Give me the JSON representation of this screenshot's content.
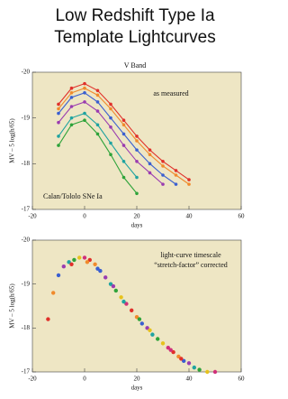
{
  "chart_data": [
    {
      "type": "line",
      "title": [
        "Low Redshift Type Ia",
        "Template Lightcurves"
      ],
      "subtitle": "V Band",
      "annotations": [
        "as measured",
        "Calan/Tololo SNe Ia"
      ],
      "x_label": "days",
      "y_label": "MV – 5 log(h/65)",
      "x": [
        -10,
        -5,
        0,
        5,
        10,
        15,
        20,
        25,
        30,
        35,
        40
      ],
      "series": [
        {
          "color": "#e0302a",
          "values": [
            -19.3,
            -19.65,
            -19.75,
            -19.6,
            -19.3,
            -18.95,
            -18.6,
            -18.3,
            -18.05,
            -17.85,
            -17.65
          ]
        },
        {
          "color": "#f08a2c",
          "values": [
            -19.2,
            -19.55,
            -19.65,
            -19.5,
            -19.2,
            -18.85,
            -18.5,
            -18.2,
            -17.95,
            -17.75,
            -17.55
          ]
        },
        {
          "color": "#3a5fd0",
          "values": [
            -19.1,
            -19.45,
            -19.55,
            -19.35,
            -19.0,
            -18.65,
            -18.3,
            -18.0,
            -17.75,
            -17.55,
            null
          ]
        },
        {
          "color": "#9a3cb0",
          "values": [
            -18.9,
            -19.25,
            -19.35,
            -19.15,
            -18.8,
            -18.4,
            -18.05,
            -17.8,
            -17.55,
            null,
            null
          ]
        },
        {
          "color": "#1fa3a0",
          "values": [
            -18.6,
            -19.0,
            -19.1,
            -18.85,
            -18.45,
            -18.05,
            -17.7,
            null,
            null,
            null,
            null
          ]
        },
        {
          "color": "#2ea33a",
          "values": [
            -18.4,
            -18.85,
            -18.95,
            -18.65,
            -18.2,
            -17.7,
            -17.35,
            null,
            null,
            null,
            null
          ]
        }
      ],
      "xlim": [
        -20,
        60
      ],
      "ylim": [
        -20,
        -17
      ],
      "xticks": [
        -20,
        0,
        20,
        40,
        60
      ],
      "yticks": [
        -20,
        -19,
        -18,
        -17
      ],
      "background": "#eee6c4"
    },
    {
      "type": "scatter",
      "annotations": [
        "light-curve timescale",
        "“stretch-factor” corrected"
      ],
      "x_label": "days",
      "y_label": "MV – 5 log(h/65)",
      "x": [
        -14,
        -12,
        -10,
        -8,
        -6,
        -4,
        -2,
        0,
        2,
        4,
        6,
        8,
        10,
        12,
        14,
        16,
        18,
        20,
        22,
        24,
        26,
        28,
        30,
        32,
        34,
        36,
        38,
        40,
        42,
        44,
        47,
        50,
        -5,
        1,
        5,
        11,
        15,
        21,
        25,
        33,
        37
      ],
      "values": [
        -18.2,
        -18.8,
        -19.2,
        -19.4,
        -19.5,
        -19.55,
        -19.6,
        -19.6,
        -19.55,
        -19.45,
        -19.3,
        -19.15,
        -19.0,
        -18.85,
        -18.7,
        -18.55,
        -18.4,
        -18.25,
        -18.1,
        -18.0,
        -17.85,
        -17.75,
        -17.65,
        -17.55,
        -17.45,
        -17.35,
        -17.25,
        -17.2,
        -17.1,
        -17.05,
        -17.0,
        -17.0,
        -19.45,
        -19.5,
        -19.35,
        -18.95,
        -18.6,
        -18.2,
        -17.95,
        -17.5,
        -17.3
      ],
      "colors": [
        "#e0302a",
        "#f08a2c",
        "#3a5fd0",
        "#9a3cb0",
        "#1fa3a0",
        "#2ea33a",
        "#e6c21c",
        "#d0307a"
      ],
      "xlim": [
        -20,
        60
      ],
      "ylim": [
        -20,
        -17
      ],
      "xticks": [
        -20,
        0,
        20,
        40,
        60
      ],
      "yticks": [
        -20,
        -19,
        -18,
        -17
      ],
      "background": "#eee6c4"
    }
  ]
}
